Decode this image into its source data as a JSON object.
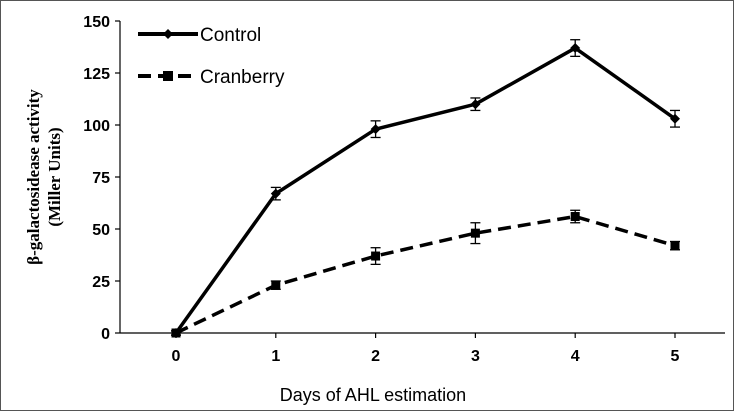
{
  "chart_data": {
    "type": "line",
    "x": [
      0,
      1,
      2,
      3,
      4,
      5
    ],
    "xlabel": "Days of AHL estimation",
    "ylabel_line1": "β-galactosidease activity",
    "ylabel_line2": "(Miller Units)",
    "ylim": [
      0,
      150
    ],
    "yticks": [
      0,
      25,
      50,
      75,
      100,
      125,
      150
    ],
    "xticks": [
      "0",
      "1",
      "2",
      "3",
      "4",
      "5"
    ],
    "legend_position": "top-left",
    "grid": false,
    "series": [
      {
        "name": "Control",
        "values": [
          0,
          67,
          98,
          110,
          137,
          103
        ],
        "errors": [
          1,
          3,
          4,
          3,
          4,
          4
        ],
        "line_style": "solid",
        "marker": "diamond",
        "color": "#000000"
      },
      {
        "name": "Cranberry",
        "values": [
          0,
          23,
          37,
          48,
          56,
          42
        ],
        "errors": [
          1,
          2,
          4,
          5,
          3,
          2
        ],
        "line_style": "dashed",
        "marker": "square",
        "color": "#000000"
      }
    ]
  }
}
